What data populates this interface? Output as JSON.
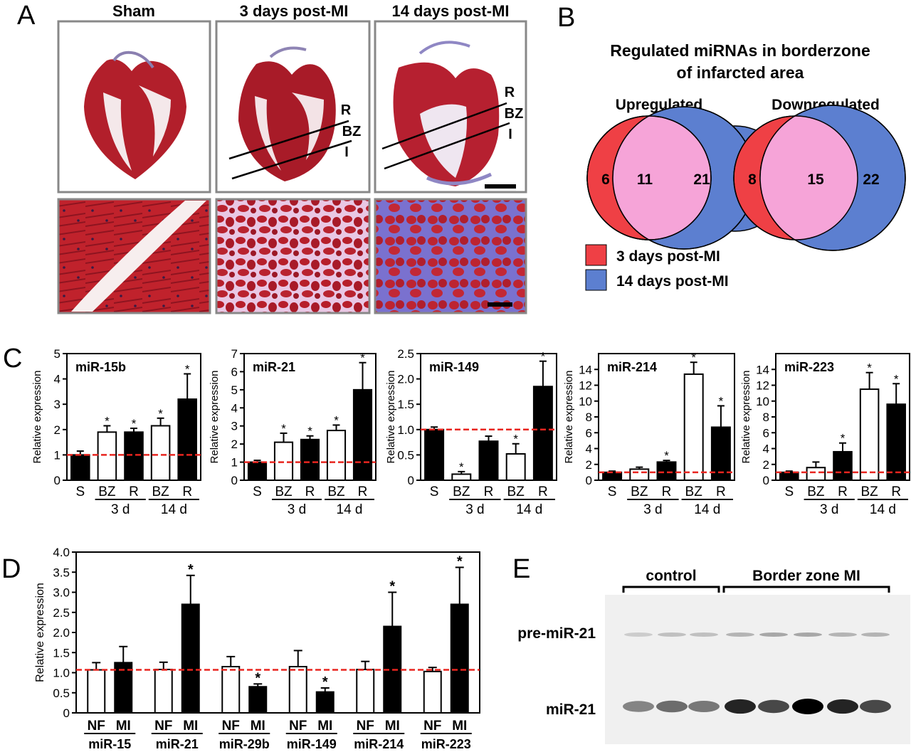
{
  "colors": {
    "red_line": "#e8251f",
    "venn_red": "#ef4045",
    "venn_blue": "#5c7fd0",
    "venn_overlap": "#f6a4d8",
    "tissue_red": "#b3202a",
    "tissue_blue": "#6b6fc9",
    "blot_bg": "#f0f0f0"
  },
  "panelA": {
    "letter": "A",
    "headers": [
      "Sham",
      "3 days post-MI",
      "14 days post-MI"
    ],
    "zone_labels": [
      "R",
      "BZ",
      "I"
    ]
  },
  "panelB": {
    "letter": "B",
    "title_line1": "Regulated miRNAs in borderzone",
    "title_line2": "of infarcted area",
    "venns": [
      {
        "title": "Upregulated",
        "only_3d": "6",
        "both": "11",
        "only_14d": "21"
      },
      {
        "title": "Downregulated",
        "only_3d": "8",
        "both": "15",
        "only_14d": "22"
      }
    ],
    "legend": [
      {
        "label": "3 days post-MI",
        "color": "#ef4045"
      },
      {
        "label": "14 days post-MI",
        "color": "#5c7fd0"
      }
    ]
  },
  "panelC": {
    "letter": "C"
  },
  "panelD": {
    "letter": "D"
  },
  "panelE": {
    "letter": "E",
    "group_labels": [
      "control",
      "Border zone MI"
    ],
    "band_labels": [
      "pre-miR-21",
      "miR-21"
    ],
    "band_intensity_mir21": [
      0.45,
      0.55,
      0.5,
      0.85,
      0.7,
      1.0,
      0.85,
      0.7
    ],
    "band_intensity_pre": [
      0.15,
      0.2,
      0.2,
      0.25,
      0.3,
      0.3,
      0.25,
      0.25
    ]
  },
  "chart_data": [
    {
      "type": "bar",
      "title": "miR-15b",
      "ylabel": "Relative expression",
      "ylim": [
        0,
        5
      ],
      "yticks": [
        "0",
        "1",
        "2",
        "3",
        "4",
        "5"
      ],
      "ytick_values": [
        0,
        1,
        2,
        3,
        4,
        5
      ],
      "categories": [
        "S",
        "BZ",
        "R",
        "BZ",
        "R"
      ],
      "groups": [
        "3 d",
        "14 d"
      ],
      "fill": [
        "black",
        "white",
        "black",
        "white",
        "black"
      ],
      "values": [
        1.0,
        1.9,
        1.9,
        2.15,
        3.2
      ],
      "errors": [
        0.15,
        0.25,
        0.15,
        0.3,
        1.0
      ],
      "significant": [
        false,
        true,
        true,
        true,
        true
      ],
      "reference_line": 1.0
    },
    {
      "type": "bar",
      "title": "miR-21",
      "ylabel": "Relative expression",
      "ylim": [
        0,
        7
      ],
      "yticks": [
        "0",
        "1",
        "2",
        "3",
        "4",
        "5",
        "6",
        "7"
      ],
      "ytick_values": [
        0,
        1,
        2,
        3,
        4,
        5,
        6,
        7
      ],
      "categories": [
        "S",
        "BZ",
        "R",
        "BZ",
        "R"
      ],
      "groups": [
        "3 d",
        "14 d"
      ],
      "fill": [
        "black",
        "white",
        "black",
        "white",
        "black"
      ],
      "values": [
        1.0,
        2.1,
        2.25,
        2.75,
        5.0
      ],
      "errors": [
        0.1,
        0.5,
        0.2,
        0.3,
        1.5
      ],
      "significant": [
        false,
        true,
        true,
        true,
        true
      ],
      "reference_line": 1.0
    },
    {
      "type": "bar",
      "title": "miR-149",
      "ylabel": "Relative expression",
      "ylim": [
        0,
        2.5
      ],
      "yticks": [
        "0",
        "0.5",
        "1.0",
        "1.5",
        "2.0",
        "2.5"
      ],
      "ytick_values": [
        0,
        0.5,
        1.0,
        1.5,
        2.0,
        2.5
      ],
      "categories": [
        "S",
        "BZ",
        "R",
        "BZ",
        "R"
      ],
      "groups": [
        "3 d",
        "14 d"
      ],
      "fill": [
        "black",
        "white",
        "black",
        "white",
        "black"
      ],
      "values": [
        1.0,
        0.12,
        0.77,
        0.52,
        1.85
      ],
      "errors": [
        0.05,
        0.05,
        0.1,
        0.2,
        0.5
      ],
      "significant": [
        false,
        true,
        false,
        true,
        true
      ],
      "reference_line": 1.0
    },
    {
      "type": "bar",
      "title": "miR-214",
      "ylabel": "Relative expression",
      "ylim": [
        0,
        16
      ],
      "yticks": [
        "0",
        "2",
        "4",
        "6",
        "8",
        "10",
        "12",
        "14"
      ],
      "ytick_values": [
        0,
        2,
        4,
        6,
        8,
        10,
        12,
        14
      ],
      "categories": [
        "S",
        "BZ",
        "R",
        "BZ",
        "R"
      ],
      "groups": [
        "3 d",
        "14 d"
      ],
      "fill": [
        "black",
        "white",
        "black",
        "white",
        "black"
      ],
      "values": [
        1.0,
        1.4,
        2.3,
        13.4,
        6.7
      ],
      "errors": [
        0.15,
        0.25,
        0.2,
        1.5,
        2.7
      ],
      "significant": [
        false,
        false,
        true,
        true,
        true
      ],
      "reference_line": 1.0
    },
    {
      "type": "bar",
      "title": "miR-223",
      "ylabel": "Relative expression",
      "ylim": [
        0,
        16
      ],
      "yticks": [
        "0",
        "2",
        "4",
        "6",
        "8",
        "10",
        "12",
        "14"
      ],
      "ytick_values": [
        0,
        2,
        4,
        6,
        8,
        10,
        12,
        14
      ],
      "categories": [
        "S",
        "BZ",
        "R",
        "BZ",
        "R"
      ],
      "groups": [
        "3 d",
        "14 d"
      ],
      "fill": [
        "black",
        "white",
        "black",
        "white",
        "black"
      ],
      "values": [
        1.0,
        1.6,
        3.6,
        11.5,
        9.6
      ],
      "errors": [
        0.15,
        0.7,
        1.1,
        2.1,
        2.6
      ],
      "significant": [
        false,
        false,
        true,
        true,
        true
      ],
      "reference_line": 1.0
    },
    {
      "type": "bar",
      "title": "",
      "ylabel": "Relative expression",
      "ylim": [
        0,
        4.0
      ],
      "yticks": [
        "0",
        "0.5",
        "1.0",
        "1.5",
        "2.0",
        "2.5",
        "3.0",
        "3.5",
        "4.0"
      ],
      "ytick_values": [
        0,
        0.5,
        1.0,
        1.5,
        2.0,
        2.5,
        3.0,
        3.5,
        4.0
      ],
      "groups": [
        "miR-15",
        "miR-21",
        "miR-29b",
        "miR-149",
        "miR-214",
        "miR-223"
      ],
      "bar_labels": [
        "NF",
        "MI"
      ],
      "series": [
        {
          "name": "NF",
          "values": [
            1.07,
            1.08,
            1.15,
            1.15,
            1.08,
            1.03
          ],
          "errors": [
            0.18,
            0.18,
            0.25,
            0.4,
            0.2,
            0.1
          ]
        },
        {
          "name": "MI",
          "values": [
            1.25,
            2.7,
            0.65,
            0.52,
            2.15,
            2.7
          ],
          "errors": [
            0.4,
            0.72,
            0.07,
            0.1,
            0.85,
            0.92
          ]
        }
      ],
      "significant_MI": [
        false,
        true,
        true,
        true,
        true,
        true
      ],
      "reference_line": 1.07
    }
  ]
}
